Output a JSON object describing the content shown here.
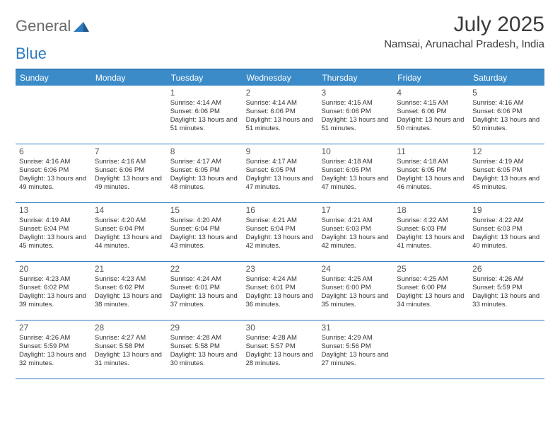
{
  "logo": {
    "part1": "General",
    "part2": "Blue"
  },
  "title": "July 2025",
  "location": "Namsai, Arunachal Pradesh, India",
  "colors": {
    "header_bg": "#3b8bc8",
    "border": "#2f7bbf",
    "text": "#333333",
    "logo_gray": "#6a6a6a",
    "logo_blue": "#2f7bbf"
  },
  "day_names": [
    "Sunday",
    "Monday",
    "Tuesday",
    "Wednesday",
    "Thursday",
    "Friday",
    "Saturday"
  ],
  "weeks": [
    [
      null,
      null,
      {
        "n": "1",
        "sr": "4:14 AM",
        "ss": "6:06 PM",
        "dl": "13 hours and 51 minutes."
      },
      {
        "n": "2",
        "sr": "4:14 AM",
        "ss": "6:06 PM",
        "dl": "13 hours and 51 minutes."
      },
      {
        "n": "3",
        "sr": "4:15 AM",
        "ss": "6:06 PM",
        "dl": "13 hours and 51 minutes."
      },
      {
        "n": "4",
        "sr": "4:15 AM",
        "ss": "6:06 PM",
        "dl": "13 hours and 50 minutes."
      },
      {
        "n": "5",
        "sr": "4:16 AM",
        "ss": "6:06 PM",
        "dl": "13 hours and 50 minutes."
      }
    ],
    [
      {
        "n": "6",
        "sr": "4:16 AM",
        "ss": "6:06 PM",
        "dl": "13 hours and 49 minutes."
      },
      {
        "n": "7",
        "sr": "4:16 AM",
        "ss": "6:06 PM",
        "dl": "13 hours and 49 minutes."
      },
      {
        "n": "8",
        "sr": "4:17 AM",
        "ss": "6:05 PM",
        "dl": "13 hours and 48 minutes."
      },
      {
        "n": "9",
        "sr": "4:17 AM",
        "ss": "6:05 PM",
        "dl": "13 hours and 47 minutes."
      },
      {
        "n": "10",
        "sr": "4:18 AM",
        "ss": "6:05 PM",
        "dl": "13 hours and 47 minutes."
      },
      {
        "n": "11",
        "sr": "4:18 AM",
        "ss": "6:05 PM",
        "dl": "13 hours and 46 minutes."
      },
      {
        "n": "12",
        "sr": "4:19 AM",
        "ss": "6:05 PM",
        "dl": "13 hours and 45 minutes."
      }
    ],
    [
      {
        "n": "13",
        "sr": "4:19 AM",
        "ss": "6:04 PM",
        "dl": "13 hours and 45 minutes."
      },
      {
        "n": "14",
        "sr": "4:20 AM",
        "ss": "6:04 PM",
        "dl": "13 hours and 44 minutes."
      },
      {
        "n": "15",
        "sr": "4:20 AM",
        "ss": "6:04 PM",
        "dl": "13 hours and 43 minutes."
      },
      {
        "n": "16",
        "sr": "4:21 AM",
        "ss": "6:04 PM",
        "dl": "13 hours and 42 minutes."
      },
      {
        "n": "17",
        "sr": "4:21 AM",
        "ss": "6:03 PM",
        "dl": "13 hours and 42 minutes."
      },
      {
        "n": "18",
        "sr": "4:22 AM",
        "ss": "6:03 PM",
        "dl": "13 hours and 41 minutes."
      },
      {
        "n": "19",
        "sr": "4:22 AM",
        "ss": "6:03 PM",
        "dl": "13 hours and 40 minutes."
      }
    ],
    [
      {
        "n": "20",
        "sr": "4:23 AM",
        "ss": "6:02 PM",
        "dl": "13 hours and 39 minutes."
      },
      {
        "n": "21",
        "sr": "4:23 AM",
        "ss": "6:02 PM",
        "dl": "13 hours and 38 minutes."
      },
      {
        "n": "22",
        "sr": "4:24 AM",
        "ss": "6:01 PM",
        "dl": "13 hours and 37 minutes."
      },
      {
        "n": "23",
        "sr": "4:24 AM",
        "ss": "6:01 PM",
        "dl": "13 hours and 36 minutes."
      },
      {
        "n": "24",
        "sr": "4:25 AM",
        "ss": "6:00 PM",
        "dl": "13 hours and 35 minutes."
      },
      {
        "n": "25",
        "sr": "4:25 AM",
        "ss": "6:00 PM",
        "dl": "13 hours and 34 minutes."
      },
      {
        "n": "26",
        "sr": "4:26 AM",
        "ss": "5:59 PM",
        "dl": "13 hours and 33 minutes."
      }
    ],
    [
      {
        "n": "27",
        "sr": "4:26 AM",
        "ss": "5:59 PM",
        "dl": "13 hours and 32 minutes."
      },
      {
        "n": "28",
        "sr": "4:27 AM",
        "ss": "5:58 PM",
        "dl": "13 hours and 31 minutes."
      },
      {
        "n": "29",
        "sr": "4:28 AM",
        "ss": "5:58 PM",
        "dl": "13 hours and 30 minutes."
      },
      {
        "n": "30",
        "sr": "4:28 AM",
        "ss": "5:57 PM",
        "dl": "13 hours and 28 minutes."
      },
      {
        "n": "31",
        "sr": "4:29 AM",
        "ss": "5:56 PM",
        "dl": "13 hours and 27 minutes."
      },
      null,
      null
    ]
  ],
  "labels": {
    "sunrise": "Sunrise: ",
    "sunset": "Sunset: ",
    "daylight": "Daylight: "
  }
}
